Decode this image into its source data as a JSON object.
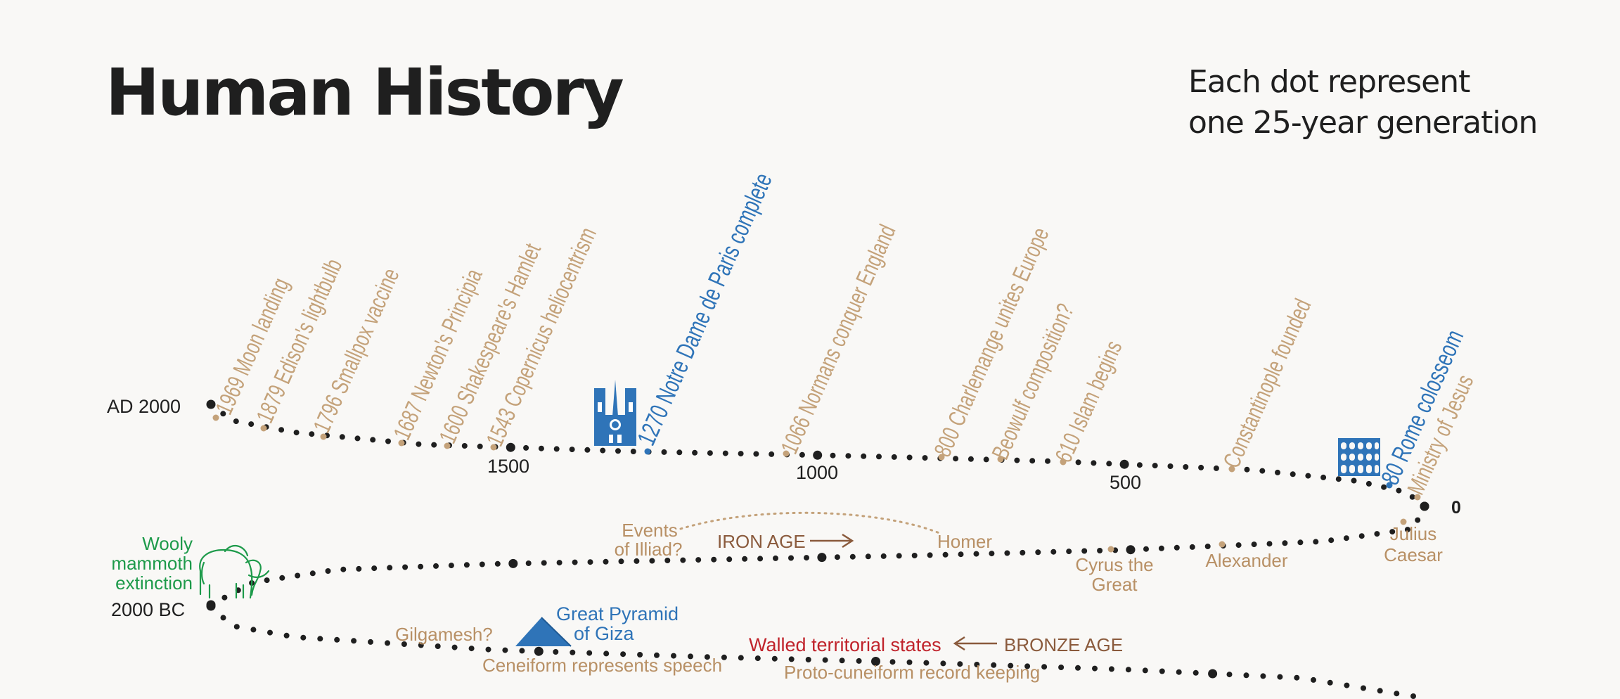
{
  "title": "Human History",
  "note": {
    "line1": "Each dot represent",
    "line2": "one 25-year generation"
  },
  "colors": {
    "dot": "#1f1f1f",
    "event": "#c4a27a",
    "landmark": "#2f74b8",
    "ancient": "#b89065",
    "age": "#8a5a3c",
    "mammoth": "#1d9a4a",
    "states": "#c0232b",
    "background": "#f9f8f6"
  },
  "axis_labels": {
    "ad2000": "AD 2000",
    "y1500": "1500",
    "y1000": "1000",
    "y500": "500",
    "y0": "0",
    "bc2000": "2000 BC"
  },
  "events_top": [
    "1969 Moon landing",
    "1879 Edison's lightbulb",
    "1796 Smallpox vaccine",
    "1687 Newton's Principia",
    "1600 Shakespeare's Hamlet",
    "1543 Copernicus heliocentrism",
    "1066 Normans conquer England",
    "800 Charlemange unites Europe",
    "Beowulf composition?",
    "610 Islam begins",
    "Constantinople founded",
    "Ministry of Jesus"
  ],
  "landmarks_top": {
    "notre_dame": "1270 Notre Dame de Paris complete",
    "colosseum": "80 Rome colosseom"
  },
  "row2": {
    "julius": [
      "Julius",
      "Caesar"
    ],
    "alexander": "Alexander",
    "cyrus": [
      "Cyrus the",
      "Great"
    ],
    "homer": "Homer",
    "iron_age": "IRON AGE",
    "illiad": [
      "Events",
      "of Illiad?"
    ],
    "mammoth": [
      "Wooly",
      "mammoth",
      "extinction"
    ]
  },
  "row3": {
    "gilgamesh": "Gilgamesh?",
    "pyramid": [
      "Great Pyramid",
      "of Giza"
    ],
    "cuneiform_speech": "Ceneiform represents speech",
    "walled_states": "Walled territorial states",
    "bronze_age": "BRONZE AGE",
    "proto_cuneiform": "Proto-cuneiform record keeping"
  }
}
